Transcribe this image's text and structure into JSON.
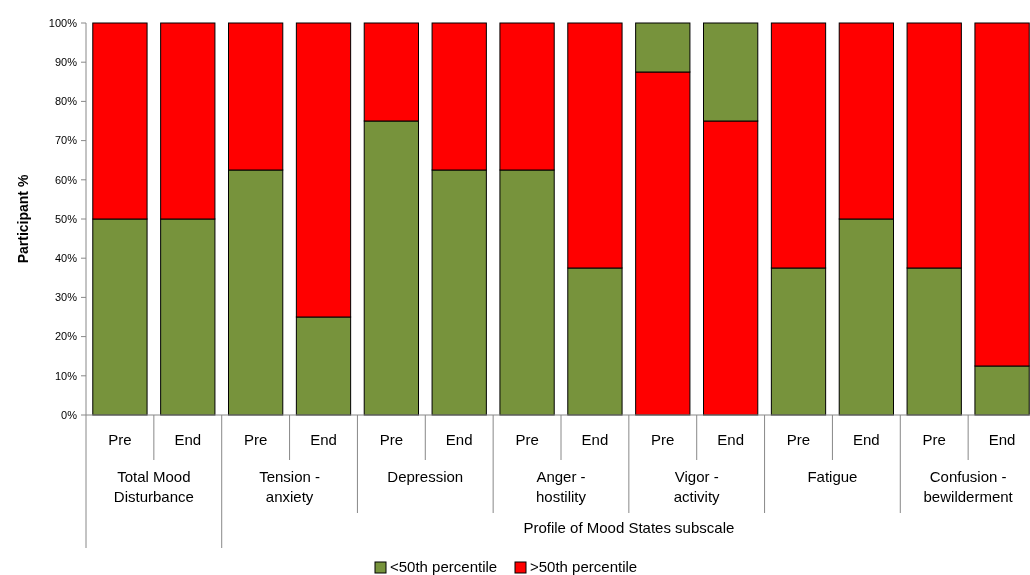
{
  "chart_data": {
    "type": "bar",
    "stacked": true,
    "ylabel": "Participant %",
    "xlabel": "Profile of Mood States subscale",
    "categories": [
      "Pre",
      "End",
      "Pre",
      "End",
      "Pre",
      "End",
      "Pre",
      "End",
      "Pre",
      "End",
      "Pre",
      "End",
      "Pre",
      "End"
    ],
    "annotations": [
      "Total Mood Disturbance",
      "Tension - anxiety",
      "Depression",
      "Anger - hostility",
      "Vigor - activity",
      "Fatigue",
      "Confusion - bewilderment"
    ],
    "series": [
      {
        "name": "<50th percentile",
        "color": "#77933c",
        "values": [
          50,
          50,
          62.5,
          25,
          75,
          62.5,
          62.5,
          37.5,
          0,
          0,
          37.5,
          50,
          37.5,
          12.5
        ]
      },
      {
        "name": ">50th percentile",
        "color": "#ff0000",
        "values": [
          50,
          50,
          37.5,
          75,
          25,
          37.5,
          37.5,
          62.5,
          87.5,
          75,
          62.5,
          50,
          62.5,
          87.5
        ]
      },
      {
        "color": "#77933c",
        "values": [
          0,
          0,
          0,
          0,
          0,
          0,
          0,
          0,
          12.5,
          25,
          0,
          0,
          0,
          0
        ]
      }
    ],
    "ylim": [
      0,
      100
    ],
    "yticks": [
      {
        "value": 0,
        "label": "0%"
      },
      {
        "value": 10,
        "label": "10%"
      },
      {
        "value": 20,
        "label": "20%"
      },
      {
        "value": 30,
        "label": "30%"
      },
      {
        "value": 40,
        "label": "40%"
      },
      {
        "value": 50,
        "label": "50%"
      },
      {
        "value": 60,
        "label": "60%"
      },
      {
        "value": 70,
        "label": "70%"
      },
      {
        "value": 80,
        "label": "80%"
      },
      {
        "value": 90,
        "label": "90%"
      },
      {
        "value": 100,
        "label": "100%"
      }
    ],
    "legend": "bottom"
  }
}
